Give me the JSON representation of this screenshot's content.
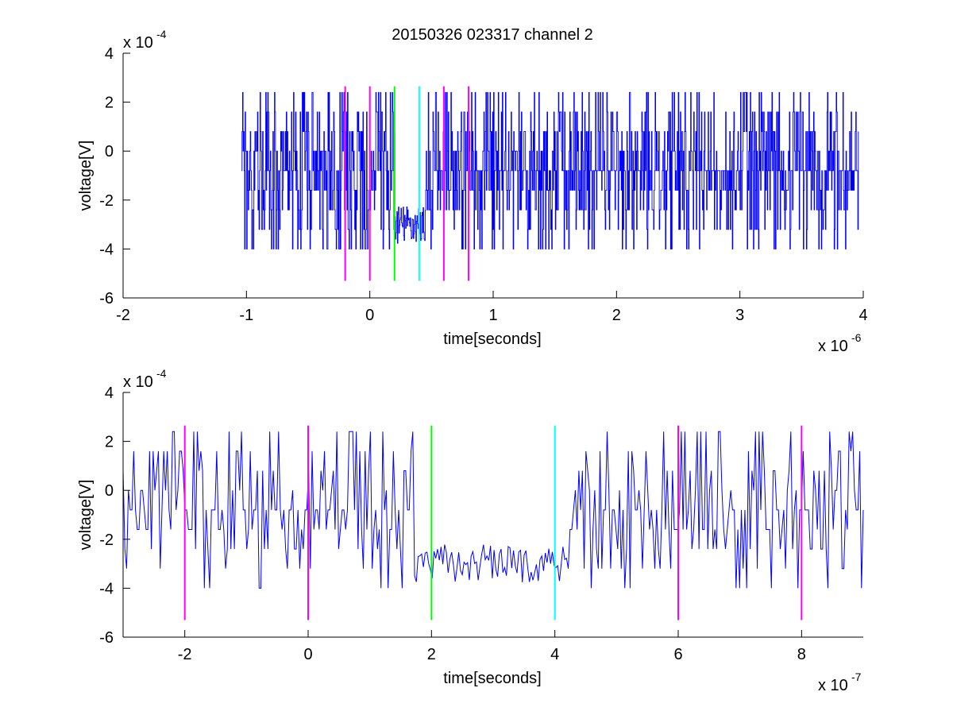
{
  "figure": {
    "title": "20150326 023317 channel 2"
  },
  "chart_data": [
    {
      "type": "line",
      "title": "20150326 023317 channel 2",
      "xlabel": "time[seconds]",
      "ylabel": "voltage[V]",
      "x_exponent_label": "x 10",
      "x_exponent": "-6",
      "y_exponent_label": "x 10",
      "y_exponent": "-4",
      "xlim": [
        -2,
        4
      ],
      "ylim": [
        -6,
        4
      ],
      "xticks": [
        -2,
        -1,
        0,
        1,
        2,
        3,
        4
      ],
      "xtick_labels": [
        "-2",
        "-1",
        "0",
        "1",
        "2",
        "3",
        "4"
      ],
      "yticks": [
        -6,
        -4,
        -2,
        0,
        2,
        4
      ],
      "ytick_labels": [
        "-6",
        "-4",
        "-2",
        "0",
        "2",
        "4"
      ],
      "grid": false,
      "signal": {
        "color": "#0000ff",
        "x_start": -1.04,
        "x_end": 3.96,
        "levels": [
          -0.8,
          -1.6,
          0,
          0.8,
          -2.4,
          1.6,
          -3.2,
          2.4,
          -4.0
        ],
        "dip_start": 0.2,
        "dip_end": 0.45,
        "dip_level": -3.0
      },
      "markers": [
        {
          "x": -0.2,
          "color": "#ff00ff",
          "y_range": [
            -5.3,
            2.65
          ]
        },
        {
          "x": 0.0,
          "color": "#ff00ff",
          "y_range": [
            -5.3,
            2.65
          ]
        },
        {
          "x": 0.2,
          "color": "#00ff00",
          "y_range": [
            -5.3,
            2.65
          ]
        },
        {
          "x": 0.4,
          "color": "#00ffff",
          "y_range": [
            -5.3,
            2.65
          ]
        },
        {
          "x": 0.6,
          "color": "#ff00ff",
          "y_range": [
            -5.3,
            2.65
          ]
        },
        {
          "x": 0.8,
          "color": "#ff00ff",
          "y_range": [
            -5.3,
            2.65
          ]
        }
      ]
    },
    {
      "type": "line",
      "title": "",
      "xlabel": "time[seconds]",
      "ylabel": "voltage[V]",
      "x_exponent_label": "x 10",
      "x_exponent": "-7",
      "y_exponent_label": "x 10",
      "y_exponent": "-4",
      "xlim": [
        -3,
        9
      ],
      "ylim": [
        -6,
        4
      ],
      "xticks": [
        -2,
        0,
        2,
        4,
        6,
        8
      ],
      "xtick_labels": [
        "-2",
        "0",
        "2",
        "4",
        "6",
        "8"
      ],
      "yticks": [
        -6,
        -4,
        -2,
        0,
        2,
        4
      ],
      "ytick_labels": [
        "-6",
        "-4",
        "-2",
        "0",
        "2",
        "4"
      ],
      "grid": false,
      "signal": {
        "color": "#0000ff",
        "x_start": -3,
        "x_end": 9,
        "levels": [
          -0.8,
          -1.6,
          0,
          0.8,
          -2.4,
          1.6,
          -3.2,
          2.4,
          -4.0
        ],
        "dip_start": 1.7,
        "dip_end": 4.2,
        "dip_level": -3.0
      },
      "markers": [
        {
          "x": -2,
          "color": "#ff00ff",
          "y_range": [
            -5.3,
            2.65
          ]
        },
        {
          "x": 0,
          "color": "#ff00ff",
          "y_range": [
            -5.3,
            2.65
          ]
        },
        {
          "x": 2,
          "color": "#00ff00",
          "y_range": [
            -5.3,
            2.65
          ]
        },
        {
          "x": 4,
          "color": "#00ffff",
          "y_range": [
            -5.3,
            2.65
          ]
        },
        {
          "x": 6,
          "color": "#ff00ff",
          "y_range": [
            -5.3,
            2.65
          ]
        },
        {
          "x": 8,
          "color": "#ff00ff",
          "y_range": [
            -5.3,
            2.65
          ]
        }
      ]
    }
  ]
}
